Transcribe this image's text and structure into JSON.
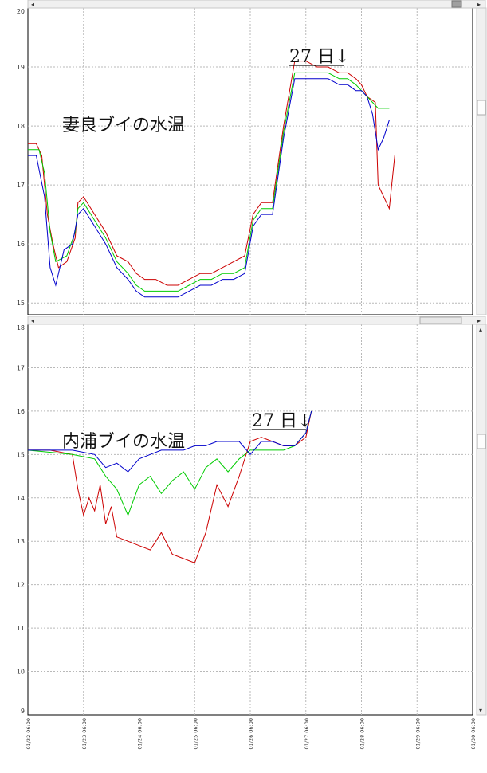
{
  "colors": {
    "red": "#cc0000",
    "green": "#00cc00",
    "blue": "#0000cc",
    "grid": "#b9b9b9",
    "scrollbar": "#f0f0f0"
  },
  "icons": {
    "scroll_left": "left-arrow-icon",
    "scroll_right": "right-arrow-icon",
    "scroll_up": "up-arrow-icon",
    "scroll_down": "down-arrow-icon"
  },
  "chart_data": [
    {
      "type": "line",
      "title": "妻良ブイの水温",
      "annotation": "27 日↓",
      "xlabel": "",
      "ylabel": "",
      "ylim": [
        14.8,
        20
      ],
      "yticks": [
        "20",
        "19",
        "18",
        "17",
        "16",
        "15"
      ],
      "xlim": [
        0,
        8
      ],
      "grid": true,
      "legend": "none",
      "series": [
        {
          "color": "red",
          "x": [
            0,
            0.15,
            0.25,
            0.35,
            0.45,
            0.55,
            0.7,
            0.85,
            0.9,
            1.0,
            1.2,
            1.4,
            1.6,
            1.8,
            1.95,
            2.1,
            2.3,
            2.5,
            2.7,
            2.9,
            3.1,
            3.3,
            3.5,
            3.7,
            3.9,
            4.05,
            4.2,
            4.4,
            4.6,
            4.8,
            5.0,
            5.2,
            5.4,
            5.6,
            5.75,
            5.9,
            6.0,
            6.1,
            6.25,
            6.3,
            6.4,
            6.5,
            6.6
          ],
          "y": [
            17.7,
            17.7,
            17.5,
            16.5,
            16.0,
            15.6,
            15.7,
            16.1,
            16.7,
            16.8,
            16.5,
            16.2,
            15.8,
            15.7,
            15.5,
            15.4,
            15.4,
            15.3,
            15.3,
            15.4,
            15.5,
            15.5,
            15.6,
            15.7,
            15.8,
            16.5,
            16.7,
            16.7,
            18.0,
            19.1,
            19.1,
            19.0,
            19.0,
            18.9,
            18.9,
            18.8,
            18.7,
            18.5,
            18.4,
            17.0,
            16.8,
            16.6,
            17.5
          ]
        },
        {
          "color": "green",
          "x": [
            0,
            0.2,
            0.3,
            0.4,
            0.5,
            0.7,
            0.85,
            0.9,
            1.0,
            1.2,
            1.4,
            1.6,
            1.8,
            1.95,
            2.1,
            2.3,
            2.5,
            2.7,
            2.9,
            3.1,
            3.3,
            3.5,
            3.7,
            3.9,
            4.05,
            4.2,
            4.4,
            4.6,
            4.8,
            5.0,
            5.2,
            5.4,
            5.6,
            5.75,
            5.9,
            6.0,
            6.1,
            6.2,
            6.3,
            6.4,
            6.5
          ],
          "y": [
            17.6,
            17.6,
            17.2,
            16.2,
            15.7,
            15.8,
            16.2,
            16.6,
            16.7,
            16.4,
            16.1,
            15.7,
            15.5,
            15.3,
            15.2,
            15.2,
            15.2,
            15.2,
            15.3,
            15.4,
            15.4,
            15.5,
            15.5,
            15.6,
            16.4,
            16.6,
            16.6,
            17.9,
            18.9,
            18.9,
            18.9,
            18.9,
            18.8,
            18.8,
            18.7,
            18.6,
            18.5,
            18.4,
            18.3,
            18.3,
            18.3
          ]
        },
        {
          "color": "blue",
          "x": [
            0,
            0.15,
            0.3,
            0.4,
            0.5,
            0.65,
            0.8,
            0.9,
            1.0,
            1.2,
            1.4,
            1.6,
            1.8,
            1.95,
            2.1,
            2.3,
            2.5,
            2.7,
            2.9,
            3.1,
            3.3,
            3.5,
            3.7,
            3.9,
            4.05,
            4.2,
            4.4,
            4.6,
            4.8,
            5.0,
            5.2,
            5.4,
            5.6,
            5.75,
            5.9,
            6.0,
            6.1,
            6.2,
            6.3,
            6.4,
            6.5
          ],
          "y": [
            17.5,
            17.5,
            16.8,
            15.6,
            15.3,
            15.9,
            16.0,
            16.5,
            16.6,
            16.3,
            16.0,
            15.6,
            15.4,
            15.2,
            15.1,
            15.1,
            15.1,
            15.1,
            15.2,
            15.3,
            15.3,
            15.4,
            15.4,
            15.5,
            16.3,
            16.5,
            16.5,
            17.8,
            18.8,
            18.8,
            18.8,
            18.8,
            18.7,
            18.7,
            18.6,
            18.6,
            18.5,
            18.2,
            17.6,
            17.8,
            18.1
          ]
        }
      ]
    },
    {
      "type": "line",
      "title": "内浦ブイの水温",
      "annotation": "27 日↓",
      "xlabel": "",
      "ylabel": "",
      "ylim": [
        9,
        18
      ],
      "yticks": [
        "18",
        "17",
        "16",
        "15",
        "14",
        "13",
        "12",
        "11",
        "10",
        "9"
      ],
      "xlim": [
        0,
        8
      ],
      "xticks": [
        "01/22 06:00",
        "01/23 06:00",
        "01/24 06:00",
        "01/25 06:00",
        "01/26 06:00",
        "01/27 06:00",
        "01/28 06:00",
        "01/29 06:00",
        "01/30 06:00"
      ],
      "grid": true,
      "legend": "none",
      "series": [
        {
          "color": "red",
          "x": [
            0,
            0.4,
            0.8,
            0.9,
            1.0,
            1.1,
            1.2,
            1.3,
            1.4,
            1.5,
            1.6,
            1.8,
            2.0,
            2.2,
            2.4,
            2.6,
            2.8,
            3.0,
            3.2,
            3.4,
            3.6,
            3.8,
            4.0,
            4.2,
            4.4,
            4.6,
            4.8,
            5.0,
            5.1
          ],
          "y": [
            15.1,
            15.1,
            15.0,
            14.2,
            13.6,
            14.0,
            13.7,
            14.3,
            13.4,
            13.8,
            13.1,
            13.0,
            12.9,
            12.8,
            13.2,
            12.7,
            12.6,
            12.5,
            13.2,
            14.3,
            13.8,
            14.5,
            15.3,
            15.4,
            15.3,
            15.2,
            15.2,
            15.4,
            16.0
          ]
        },
        {
          "color": "green",
          "x": [
            0,
            0.8,
            1.2,
            1.4,
            1.6,
            1.8,
            2.0,
            2.2,
            2.4,
            2.6,
            2.8,
            3.0,
            3.2,
            3.4,
            3.6,
            3.8,
            4.0,
            4.2,
            4.4,
            4.6,
            4.8,
            5.0,
            5.1
          ],
          "y": [
            15.1,
            15.0,
            14.9,
            14.5,
            14.2,
            13.6,
            14.3,
            14.5,
            14.1,
            14.4,
            14.6,
            14.2,
            14.7,
            14.9,
            14.6,
            14.9,
            15.1,
            15.1,
            15.1,
            15.1,
            15.2,
            15.5,
            16.0
          ]
        },
        {
          "color": "blue",
          "x": [
            0,
            0.8,
            1.2,
            1.4,
            1.6,
            1.8,
            2.0,
            2.2,
            2.4,
            2.6,
            2.8,
            3.0,
            3.2,
            3.4,
            3.6,
            3.8,
            4.0,
            4.2,
            4.4,
            4.6,
            4.8,
            5.0,
            5.1
          ],
          "y": [
            15.1,
            15.1,
            15.0,
            14.7,
            14.8,
            14.6,
            14.9,
            15.0,
            15.1,
            15.1,
            15.1,
            15.2,
            15.2,
            15.3,
            15.3,
            15.3,
            15.0,
            15.3,
            15.3,
            15.2,
            15.2,
            15.5,
            16.0
          ]
        }
      ]
    }
  ]
}
